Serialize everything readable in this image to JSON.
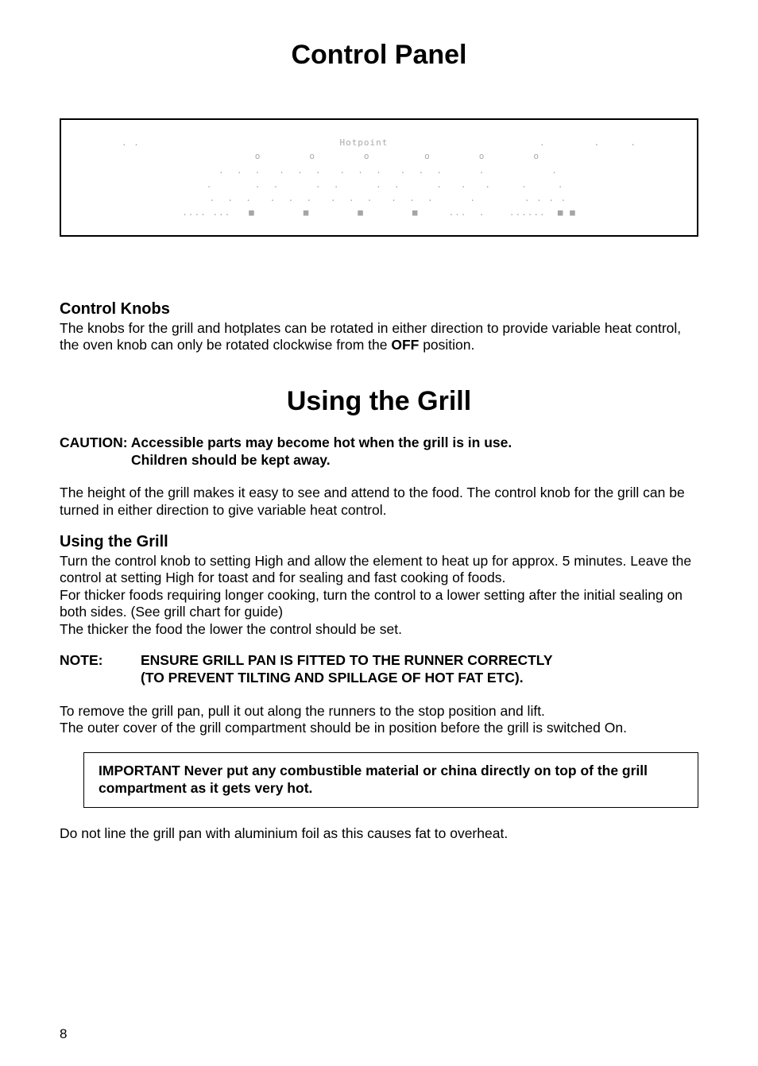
{
  "title": "Control Panel",
  "panel_image": {
    "brand_text": "Hotpoint",
    "ascii_hint": ". .                                 Hotpoint                         .        .     .\n      o        o        o         o        o        o\n   .  .  .   .  .  .   .  .  .   .  .  .      .           .\n  .       .  .      .  .      .  .      .   .   .     .     .\n   .  .  .   .  .  .   .  .  .   .  .  .      .        . . . .\n.... ...   ■        ■        ■        ■     ...  .    ......  ■ ■"
  },
  "control_knobs": {
    "heading": "Control Knobs",
    "text": "The knobs for the grill and hotplates can be rotated in either direction to provide variable heat control, the oven knob can only be rotated clockwise from the ",
    "bold_word": "OFF",
    "text_after": " position."
  },
  "using_grill_title": "Using the Grill",
  "caution": {
    "label": "CAUTION:",
    "line1_rest": " Accessible parts may become hot when the grill is in use.",
    "line2": "Children should  be kept away."
  },
  "grill_intro": "The height of the grill makes it easy to see and attend to the food. The control knob for the grill can be turned in either direction to give variable heat control.",
  "using_grill_section": {
    "heading": "Using the Grill",
    "body": "Turn the control knob to setting High and allow the element to heat up for approx. 5 minutes. Leave the control at setting High for toast and for sealing and fast cooking of foods.\nFor thicker foods requiring longer cooking, turn the control to a lower setting after the initial sealing on both sides. (See grill chart for guide)\nThe thicker the food the lower the control should be set."
  },
  "note": {
    "label": "NOTE:",
    "line1": "ENSURE GRILL PAN IS FITTED TO THE RUNNER CORRECTLY",
    "line2": "(TO PREVENT TILTING AND SPILLAGE OF HOT FAT ETC)."
  },
  "remove_text": "To remove the grill pan, pull it out along the runners to the stop  position and lift.\nThe outer cover of the grill compartment should be in position before the grill is switched On.",
  "important_box": "IMPORTANT Never put any combustible material or china directly on top of the grill compartment as it gets very hot.",
  "foil_text": "Do not line the grill pan with aluminium foil as this causes fat to overheat.",
  "page_number": "8"
}
